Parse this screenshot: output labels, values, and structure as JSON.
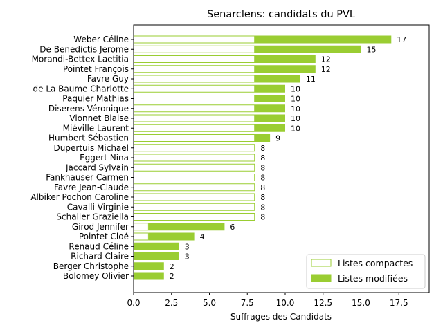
{
  "chart_data": {
    "type": "bar",
    "orientation": "horizontal",
    "stacked": true,
    "title": "Senarclens: candidats du PVL",
    "xlabel": "Suffrages des Candidats",
    "ylabel": "",
    "xlim": [
      0,
      19.5
    ],
    "xticks": [
      "0.0",
      "2.5",
      "5.0",
      "7.5",
      "10.0",
      "12.5",
      "15.0",
      "17.5"
    ],
    "grid": false,
    "legend_position": "bottom-right",
    "color": "#9acd32",
    "categories": [
      "Weber Céline",
      "De Benedictis Jerome",
      "Morandi-Bettex Laetitia",
      "Pointet François",
      "Favre Guy",
      "de La Baume Charlotte",
      "Paquier Mathias",
      "Diserens Véronique",
      "Vionnet Blaise",
      "Miéville Laurent",
      "Humbert Sébastien",
      "Dupertuis Michael",
      "Eggert Nina",
      "Jaccard Sylvain",
      "Fankhauser Carmen",
      "Favre Jean-Claude",
      "Albiker Pochon Caroline",
      "Cavalli Virginie",
      "Schaller Graziella",
      "Girod Jennifer",
      "Pointet Cloé",
      "Renaud Céline",
      "Richard Claire",
      "Berger Christophe",
      "Bolomey Olivier"
    ],
    "series": [
      {
        "name": "Listes compactes",
        "style": "outline",
        "values": [
          8,
          8,
          8,
          8,
          8,
          8,
          8,
          8,
          8,
          8,
          8,
          8,
          8,
          8,
          8,
          8,
          8,
          8,
          8,
          1,
          1,
          0,
          0,
          0,
          0
        ]
      },
      {
        "name": "Listes modifiées",
        "style": "filled",
        "values": [
          9,
          7,
          4,
          4,
          3,
          2,
          2,
          2,
          2,
          2,
          1,
          0,
          0,
          0,
          0,
          0,
          0,
          0,
          0,
          5,
          3,
          3,
          3,
          2,
          2
        ]
      }
    ],
    "totals": [
      17,
      15,
      12,
      12,
      11,
      10,
      10,
      10,
      10,
      10,
      9,
      8,
      8,
      8,
      8,
      8,
      8,
      8,
      8,
      6,
      4,
      3,
      3,
      2,
      2
    ]
  }
}
